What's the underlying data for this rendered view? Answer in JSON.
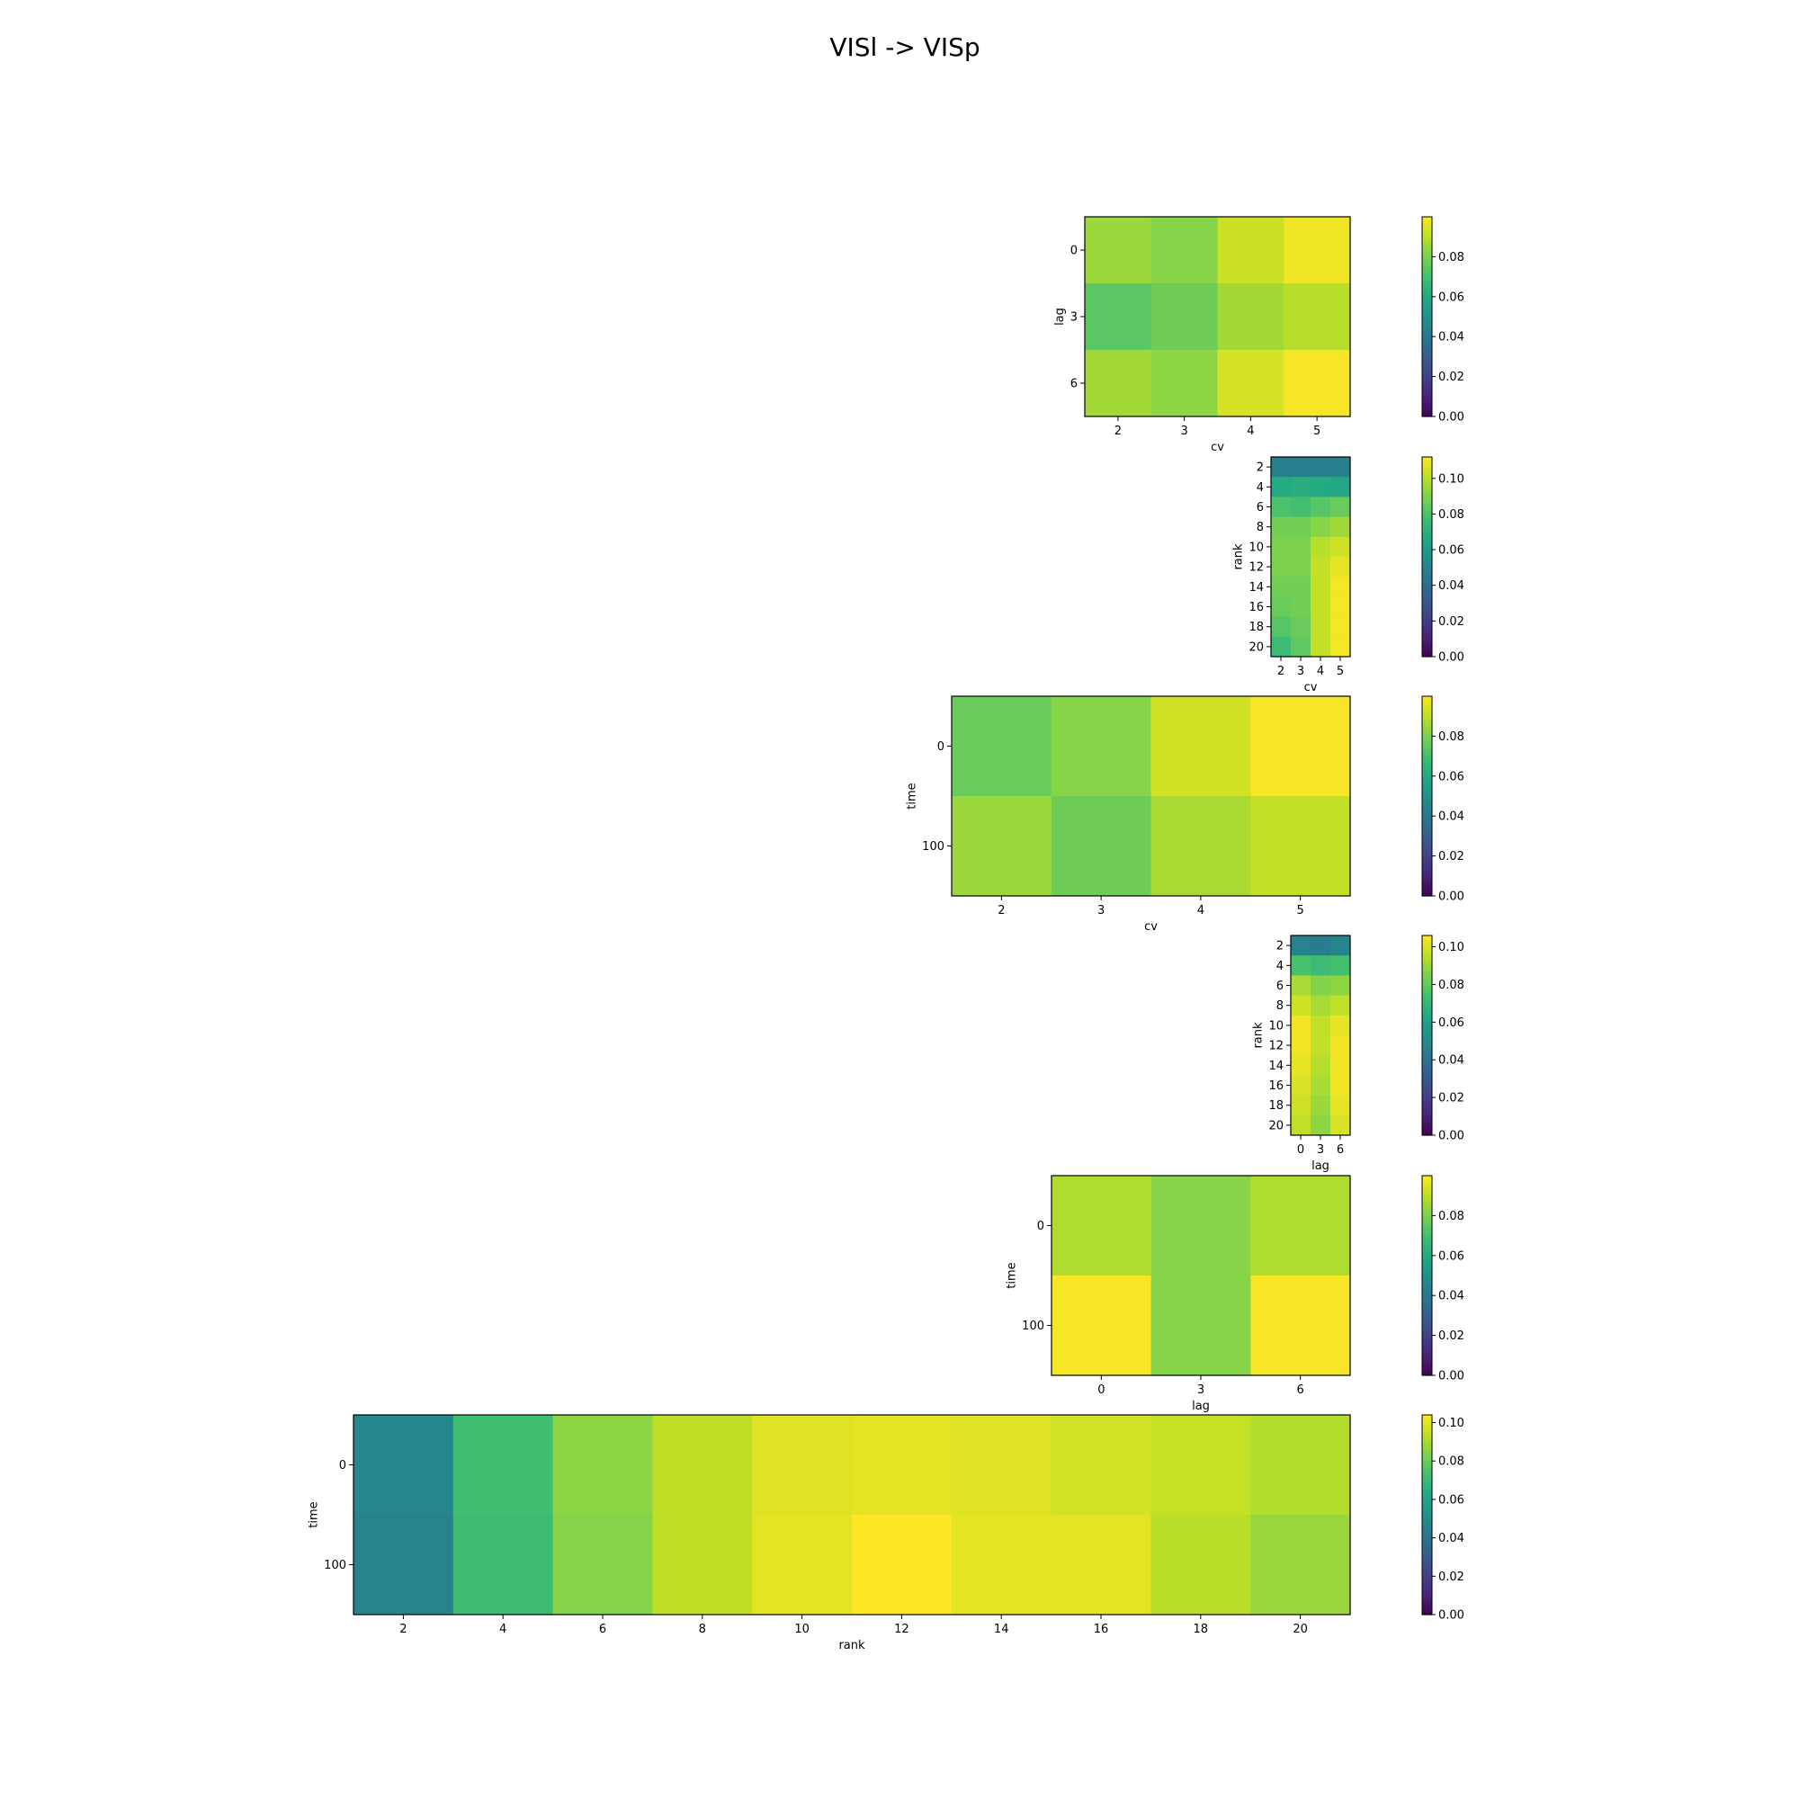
{
  "title": "VISl -> VISp",
  "colormap": "viridis",
  "chart_data": [
    {
      "type": "heatmap",
      "xlabel": "cv",
      "ylabel": "lag",
      "x": [
        "2",
        "3",
        "4",
        "5"
      ],
      "y": [
        "0",
        "3",
        "6"
      ],
      "values": [
        [
          0.085,
          0.082,
          0.092,
          0.098
        ],
        [
          0.074,
          0.078,
          0.086,
          0.089
        ],
        [
          0.086,
          0.083,
          0.094,
          0.099
        ]
      ],
      "vmin": 0.0,
      "vmax": 0.1,
      "colorbar_ticks": [
        "0.00",
        "0.02",
        "0.04",
        "0.06",
        "0.08"
      ]
    },
    {
      "type": "heatmap",
      "xlabel": "cv",
      "ylabel": "rank",
      "x": [
        "2",
        "3",
        "4",
        "5"
      ],
      "y": [
        "2",
        "4",
        "6",
        "8",
        "10",
        "12",
        "14",
        "16",
        "18",
        "20"
      ],
      "values": [
        [
          0.048,
          0.048,
          0.048,
          0.048
        ],
        [
          0.068,
          0.07,
          0.068,
          0.066
        ],
        [
          0.08,
          0.078,
          0.082,
          0.086
        ],
        [
          0.088,
          0.088,
          0.092,
          0.096
        ],
        [
          0.09,
          0.09,
          0.1,
          0.104
        ],
        [
          0.09,
          0.09,
          0.102,
          0.108
        ],
        [
          0.088,
          0.088,
          0.102,
          0.11
        ],
        [
          0.086,
          0.088,
          0.102,
          0.11
        ],
        [
          0.082,
          0.086,
          0.102,
          0.11
        ],
        [
          0.076,
          0.084,
          0.102,
          0.11
        ]
      ],
      "vmin": 0.0,
      "vmax": 0.112,
      "colorbar_ticks": [
        "0.00",
        "0.02",
        "0.04",
        "0.06",
        "0.08",
        "0.10"
      ]
    },
    {
      "type": "heatmap",
      "xlabel": "cv",
      "ylabel": "time",
      "x": [
        "2",
        "3",
        "4",
        "5"
      ],
      "y": [
        "0",
        "100"
      ],
      "values": [
        [
          0.077,
          0.082,
          0.093,
          0.099
        ],
        [
          0.085,
          0.078,
          0.087,
          0.091
        ]
      ],
      "vmin": 0.0,
      "vmax": 0.1,
      "colorbar_ticks": [
        "0.00",
        "0.02",
        "0.04",
        "0.06",
        "0.08"
      ]
    },
    {
      "type": "heatmap",
      "xlabel": "lag",
      "ylabel": "rank",
      "x": [
        "0",
        "3",
        "6"
      ],
      "y": [
        "2",
        "4",
        "6",
        "8",
        "10",
        "12",
        "14",
        "16",
        "18",
        "20"
      ],
      "values": [
        [
          0.047,
          0.044,
          0.048
        ],
        [
          0.075,
          0.072,
          0.074
        ],
        [
          0.092,
          0.086,
          0.088
        ],
        [
          0.098,
          0.092,
          0.096
        ],
        [
          0.104,
          0.096,
          0.102
        ],
        [
          0.104,
          0.096,
          0.104
        ],
        [
          0.102,
          0.094,
          0.104
        ],
        [
          0.1,
          0.092,
          0.104
        ],
        [
          0.098,
          0.09,
          0.102
        ],
        [
          0.096,
          0.088,
          0.1
        ]
      ],
      "vmin": 0.0,
      "vmax": 0.106,
      "colorbar_ticks": [
        "0.00",
        "0.02",
        "0.04",
        "0.06",
        "0.08",
        "0.10"
      ]
    },
    {
      "type": "heatmap",
      "xlabel": "lag",
      "ylabel": "time",
      "x": [
        "0",
        "3",
        "6"
      ],
      "y": [
        "0",
        "100"
      ],
      "values": [
        [
          0.088,
          0.082,
          0.088
        ],
        [
          0.099,
          0.082,
          0.099
        ]
      ],
      "vmin": 0.0,
      "vmax": 0.1,
      "colorbar_ticks": [
        "0.00",
        "0.02",
        "0.04",
        "0.06",
        "0.08"
      ]
    },
    {
      "type": "heatmap",
      "xlabel": "rank",
      "ylabel": "time",
      "x": [
        "2",
        "4",
        "6",
        "8",
        "10",
        "12",
        "14",
        "16",
        "18",
        "20"
      ],
      "y": [
        "0",
        "100"
      ],
      "values": [
        [
          0.048,
          0.072,
          0.086,
          0.094,
          0.099,
          0.1,
          0.099,
          0.097,
          0.095,
          0.092
        ],
        [
          0.046,
          0.071,
          0.085,
          0.094,
          0.1,
          0.104,
          0.1,
          0.1,
          0.093,
          0.088
        ]
      ],
      "vmin": 0.0,
      "vmax": 0.104,
      "colorbar_ticks": [
        "0.00",
        "0.02",
        "0.04",
        "0.06",
        "0.08",
        "0.10"
      ]
    }
  ]
}
